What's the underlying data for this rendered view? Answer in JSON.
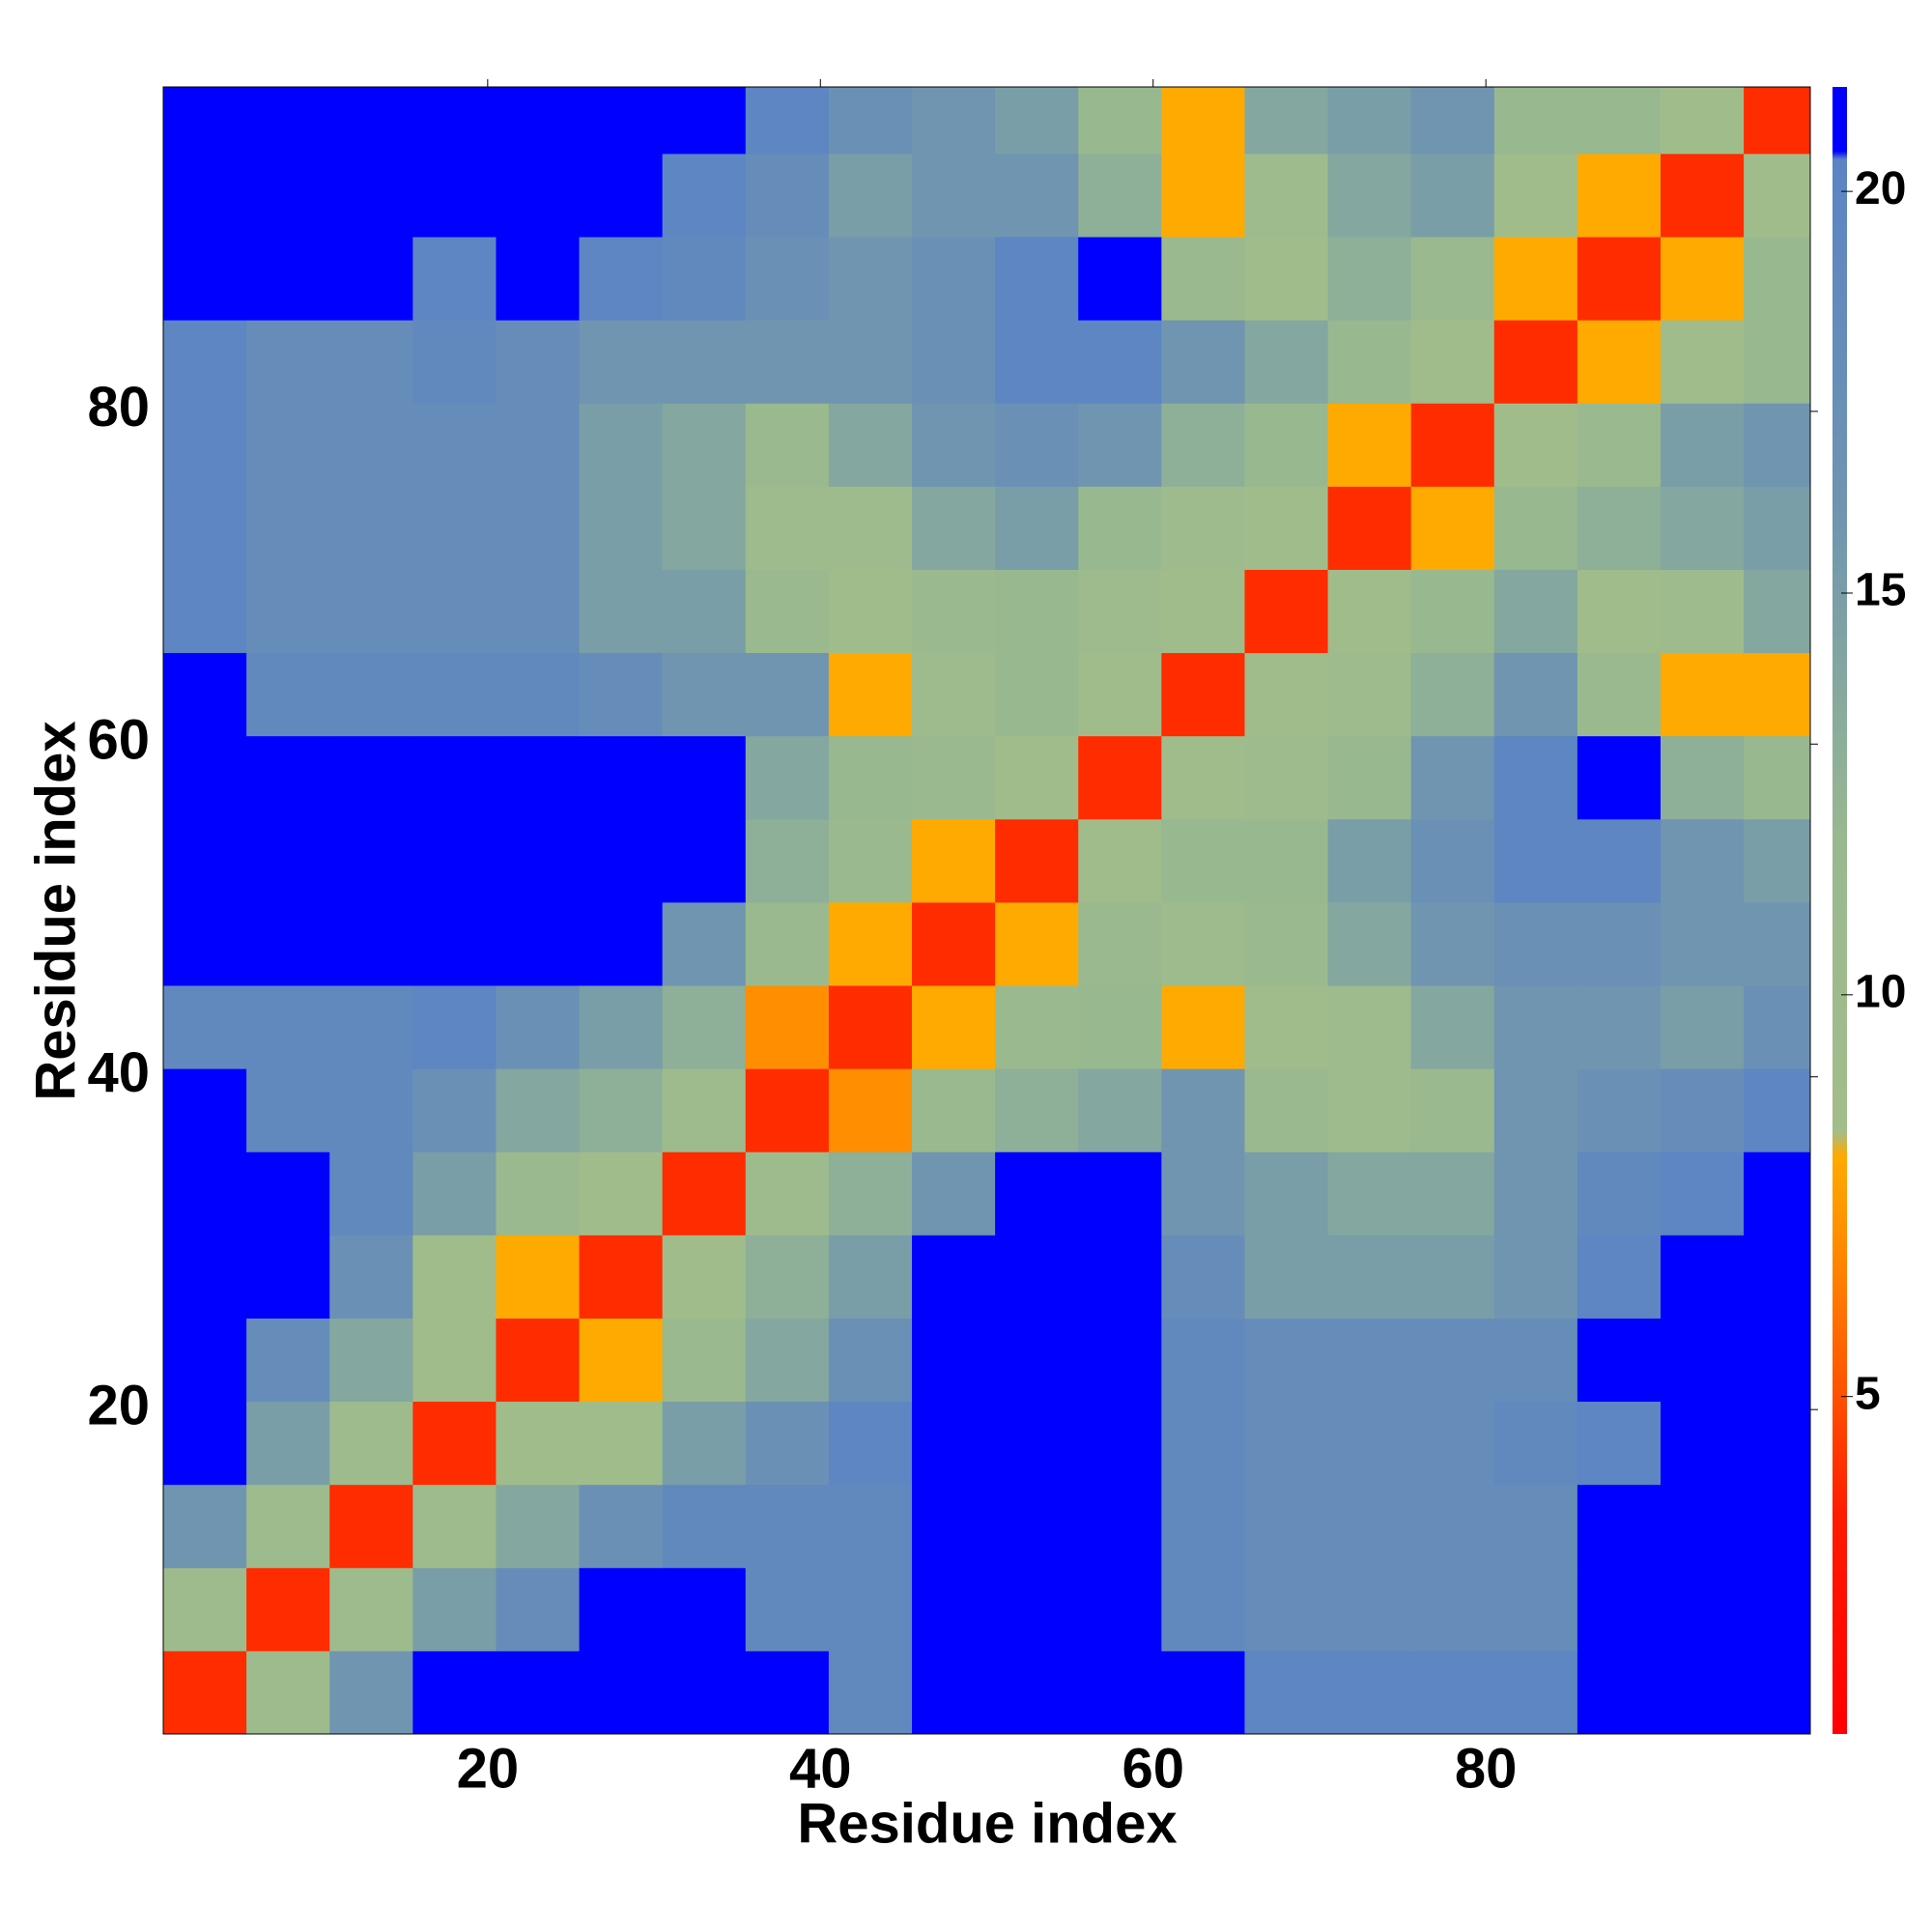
{
  "chart_data": {
    "type": "heatmap",
    "xlabel": "Residue index",
    "ylabel": "Residue index",
    "xbins": [
      0.5,
      5.5,
      10.5,
      15.5,
      20.5,
      25.5,
      30.5,
      35.5,
      40.5,
      45.5,
      50.5,
      55.5,
      60.5,
      65.5,
      70.5,
      75.5,
      80.5,
      85.5,
      90.5,
      95.5,
      99.5
    ],
    "ybins": [
      0.5,
      5.5,
      10.5,
      15.5,
      20.5,
      25.5,
      30.5,
      35.5,
      40.5,
      45.5,
      50.5,
      55.5,
      60.5,
      65.5,
      70.5,
      75.5,
      80.5,
      85.5,
      90.5,
      95.5,
      99.5
    ],
    "xlim": [
      0.5,
      99.5
    ],
    "ylim": [
      0.5,
      99.5
    ],
    "xticks": [
      20,
      40,
      60,
      80
    ],
    "yticks": [
      20,
      40,
      60,
      80
    ],
    "clim": [
      0.8,
      21.3
    ],
    "cticks": [
      5,
      10,
      15,
      20
    ],
    "colorscale": [
      [
        0.8,
        "#ff0000"
      ],
      [
        3.5,
        "#ff1a00"
      ],
      [
        5,
        "#ff5000"
      ],
      [
        6.5,
        "#ff8000"
      ],
      [
        8,
        "#ffaa00"
      ],
      [
        8.3,
        "#a3bd8a"
      ],
      [
        12,
        "#98b890"
      ],
      [
        16,
        "#6f95b0"
      ],
      [
        20.4,
        "#5b84c4"
      ],
      [
        20.5,
        "#0000ff"
      ],
      [
        21.3,
        "#0000ff"
      ]
    ],
    "values": [
      [
        4,
        10,
        16,
        21,
        21,
        21,
        21,
        21,
        19,
        21,
        21,
        21,
        21,
        20,
        20,
        20,
        20,
        21,
        21,
        21
      ],
      [
        10,
        4,
        10,
        15,
        18,
        21,
        21,
        19,
        19,
        21,
        21,
        21,
        19,
        18,
        18,
        18,
        18,
        21,
        21,
        21
      ],
      [
        16,
        10,
        4,
        10,
        14,
        17,
        19,
        19,
        19,
        21,
        21,
        21,
        19,
        18,
        18,
        18,
        18,
        21,
        21,
        21
      ],
      [
        21,
        15,
        10,
        4,
        9,
        9,
        15,
        17,
        20,
        21,
        21,
        21,
        19,
        18,
        18,
        18,
        19,
        20,
        21,
        21
      ],
      [
        21,
        18,
        14,
        9,
        4,
        8,
        11,
        14,
        17,
        21,
        21,
        21,
        19,
        18,
        18,
        18,
        18,
        21,
        21,
        21
      ],
      [
        21,
        21,
        17,
        9,
        8,
        4,
        9,
        13,
        15,
        21,
        21,
        21,
        18,
        15,
        15,
        15,
        16,
        20,
        21,
        21
      ],
      [
        21,
        21,
        19,
        15,
        11,
        9,
        4,
        10,
        13,
        16,
        21,
        21,
        16,
        15,
        14,
        14,
        16,
        19,
        20,
        21
      ],
      [
        21,
        19,
        19,
        17,
        14,
        13,
        10,
        4,
        7,
        11,
        13,
        14,
        16,
        11,
        10,
        11,
        16,
        17,
        18,
        20
      ],
      [
        19,
        19,
        19,
        20,
        17,
        15,
        13,
        7,
        4,
        8,
        11,
        12,
        8,
        9,
        10,
        14,
        16,
        16,
        15,
        17
      ],
      [
        21,
        21,
        21,
        21,
        21,
        21,
        16,
        11,
        8,
        4,
        8,
        11,
        10,
        11,
        14,
        16,
        17,
        17,
        16,
        16
      ],
      [
        21,
        21,
        21,
        21,
        21,
        21,
        21,
        13,
        11,
        8,
        4,
        9,
        12,
        12,
        15,
        17,
        20,
        20,
        16,
        15
      ],
      [
        21,
        21,
        21,
        21,
        21,
        21,
        21,
        14,
        12,
        11,
        9,
        4,
        9,
        10,
        12,
        16,
        20,
        21,
        13,
        12
      ],
      [
        21,
        19,
        19,
        19,
        19,
        18,
        16,
        16,
        8,
        10,
        12,
        9,
        4,
        9,
        10,
        13,
        16,
        11,
        8,
        8
      ],
      [
        20,
        18,
        18,
        18,
        18,
        15,
        15,
        11,
        9,
        11,
        12,
        10,
        9,
        4,
        9,
        12,
        14,
        9,
        10,
        14
      ],
      [
        20,
        18,
        18,
        18,
        18,
        15,
        14,
        10,
        10,
        14,
        15,
        12,
        10,
        9,
        4,
        8,
        12,
        13,
        14,
        15
      ],
      [
        20,
        18,
        18,
        18,
        18,
        15,
        14,
        11,
        14,
        16,
        17,
        16,
        13,
        12,
        8,
        4,
        9,
        11,
        15,
        16
      ],
      [
        20,
        18,
        18,
        19,
        18,
        16,
        16,
        16,
        16,
        17,
        20,
        20,
        16,
        14,
        12,
        9,
        4,
        8,
        9,
        12
      ],
      [
        21,
        21,
        21,
        20,
        21,
        20,
        19,
        17,
        16,
        17,
        20,
        21,
        11,
        9,
        13,
        11,
        8,
        4,
        8,
        12
      ],
      [
        21,
        21,
        21,
        21,
        21,
        21,
        20,
        18,
        15,
        16,
        16,
        13,
        8,
        10,
        14,
        15,
        9,
        8,
        4,
        9
      ],
      [
        21,
        21,
        21,
        21,
        21,
        21,
        21,
        20,
        17,
        16,
        15,
        12,
        8,
        14,
        15,
        16,
        12,
        12,
        9,
        4
      ]
    ]
  }
}
